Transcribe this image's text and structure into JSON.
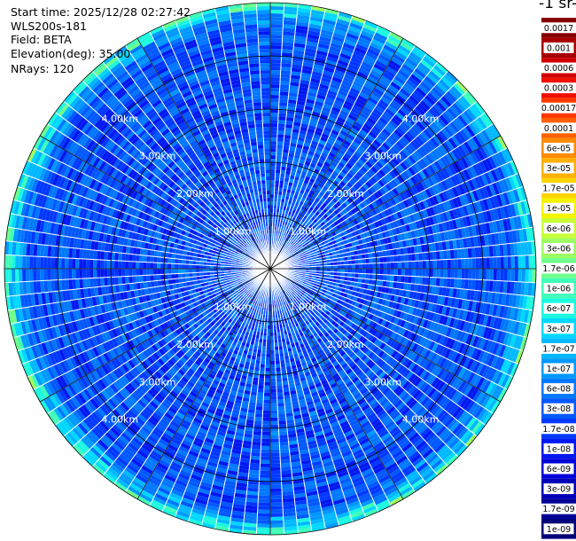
{
  "info": {
    "start_time": "Start time: 2025/12/28 02:27:42",
    "instrument": "WLS200s-181",
    "field": "Field: BETA",
    "elevation": "Elevation(deg): 35.00",
    "nrays": "NRays: 120"
  },
  "colorbar": {
    "title": "-1 sr-",
    "ticks": [
      "0.0017",
      "0.001",
      "0.0006",
      "0.0003",
      "0.00017",
      "0.0001",
      "6e-05",
      "3e-05",
      "1.7e-05",
      "1e-05",
      "6e-06",
      "3e-06",
      "1.7e-06",
      "1e-06",
      "6e-07",
      "3e-07",
      "1.7e-07",
      "1e-07",
      "6e-08",
      "3e-08",
      "1.7e-08",
      "1e-08",
      "6e-09",
      "3e-09",
      "1.7e-09",
      "1e-09"
    ],
    "colors": [
      "#880000",
      "#a80000",
      "#d00000",
      "#f01000",
      "#ff3800",
      "#ff6000",
      "#ff8a00",
      "#ffb000",
      "#ffd400",
      "#f4f400",
      "#c8ff37",
      "#9cff62",
      "#6cff8c",
      "#40ffb8",
      "#1cf8e0",
      "#00d8ff",
      "#00b8ff",
      "#0098ff",
      "#0078ff",
      "#0058ff",
      "#0038ff",
      "#0018f0",
      "#0000d8",
      "#0000b8",
      "#000098",
      "#000078"
    ]
  },
  "chart_data": {
    "type": "heatmap",
    "projection": "polar",
    "field": "BETA",
    "elevation_deg": 35.0,
    "n_rays": 120,
    "range_rings_km": [
      1.0,
      2.0,
      3.0,
      4.0
    ],
    "ring_labels": [
      "1.00km",
      "2.00km",
      "3.00km",
      "4.00km"
    ],
    "max_range_km": 5.0,
    "color_scale": "log",
    "value_range": [
      1e-09,
      0.0017
    ],
    "typical_inner_value": 3e-08,
    "outer_edge_value": 1e-06,
    "grid": true
  }
}
